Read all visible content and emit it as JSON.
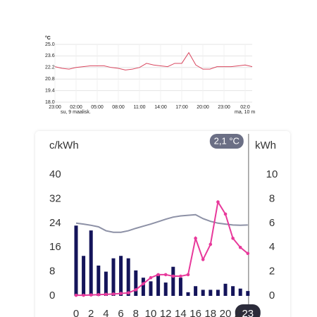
{
  "chart_data": [
    {
      "type": "line",
      "y_label": "°C",
      "categories": [
        "23:00",
        null,
        null,
        "02:00",
        null,
        null,
        "05:00",
        null,
        null,
        "08:00",
        null,
        null,
        "11:00",
        null,
        null,
        "14:00",
        null,
        null,
        "17:00",
        null,
        null,
        "20:00",
        null,
        null,
        "23:00",
        null,
        null,
        "02:0",
        null
      ],
      "date_labels": [
        "su, 9 maalisk.",
        "ma, 10 m"
      ],
      "series": [
        {
          "color": "#d9475f",
          "values": [
            22.3,
            22.1,
            22.0,
            22.2,
            22.3,
            22.4,
            22.4,
            22.4,
            22.2,
            22.1,
            21.9,
            22.0,
            22.2,
            22.7,
            22.5,
            22.4,
            22.3,
            22.7,
            22.7,
            24.0,
            22.5,
            22.0,
            22.0,
            22.3,
            22.3,
            22.3,
            22.4,
            22.5,
            22.3
          ]
        }
      ],
      "ylim": [
        18.0,
        25.0
      ],
      "yticks": [
        {
          "value": 18.0,
          "label": "18.0"
        },
        19.4,
        20.8,
        22.2,
        23.6,
        {
          "value": 25.0,
          "label": "25.0"
        }
      ],
      "grid": true
    },
    {
      "type": "bar-line",
      "y_label": "c/kWh",
      "y2_label": "kWh",
      "cursor_label": "2,1 °C",
      "categories": [
        "0",
        null,
        "2",
        null,
        "4",
        null,
        "6",
        null,
        "8",
        null,
        "10",
        null,
        "12",
        null,
        "14",
        null,
        "16",
        null,
        "18",
        null,
        "20",
        null,
        "22",
        "23"
      ],
      "series": [
        {
          "type": "bar",
          "axis": "y2",
          "color": "#14145a",
          "values": [
            5.8,
            3.3,
            5.4,
            2.5,
            2.0,
            3.1,
            3.3,
            3.1,
            2.1,
            1.5,
            1.2,
            1.8,
            1.1,
            2.4,
            1.5,
            0.3,
            0.8,
            0.5,
            0.5,
            0.5,
            1.0,
            0.8,
            0.6,
            0.4
          ]
        },
        {
          "type": "line",
          "color": "#8d91a6",
          "values": [
            24,
            23.7,
            23.3,
            22.8,
            21.5,
            21,
            21,
            21.5,
            22.3,
            23,
            23.7,
            24.5,
            25.3,
            26,
            26.4,
            26.6,
            26.8,
            25.5,
            24.6,
            24,
            23.7,
            23.4,
            23.3,
            23.4
          ]
        },
        {
          "type": "line",
          "markers": true,
          "color": "#e8399b",
          "values": [
            0.2,
            0.2,
            0.3,
            0.4,
            0.5,
            0.6,
            0.8,
            1,
            2,
            4,
            6,
            7,
            7,
            6.5,
            6.5,
            7,
            19,
            12,
            17,
            31,
            27,
            19,
            16,
            14
          ]
        }
      ],
      "ylim": [
        0,
        40
      ],
      "yticks": [
        0,
        8,
        16,
        24,
        32,
        40
      ],
      "y2lim": [
        0,
        10
      ],
      "y2ticks": [
        0,
        2,
        4,
        6,
        8,
        10
      ]
    }
  ]
}
